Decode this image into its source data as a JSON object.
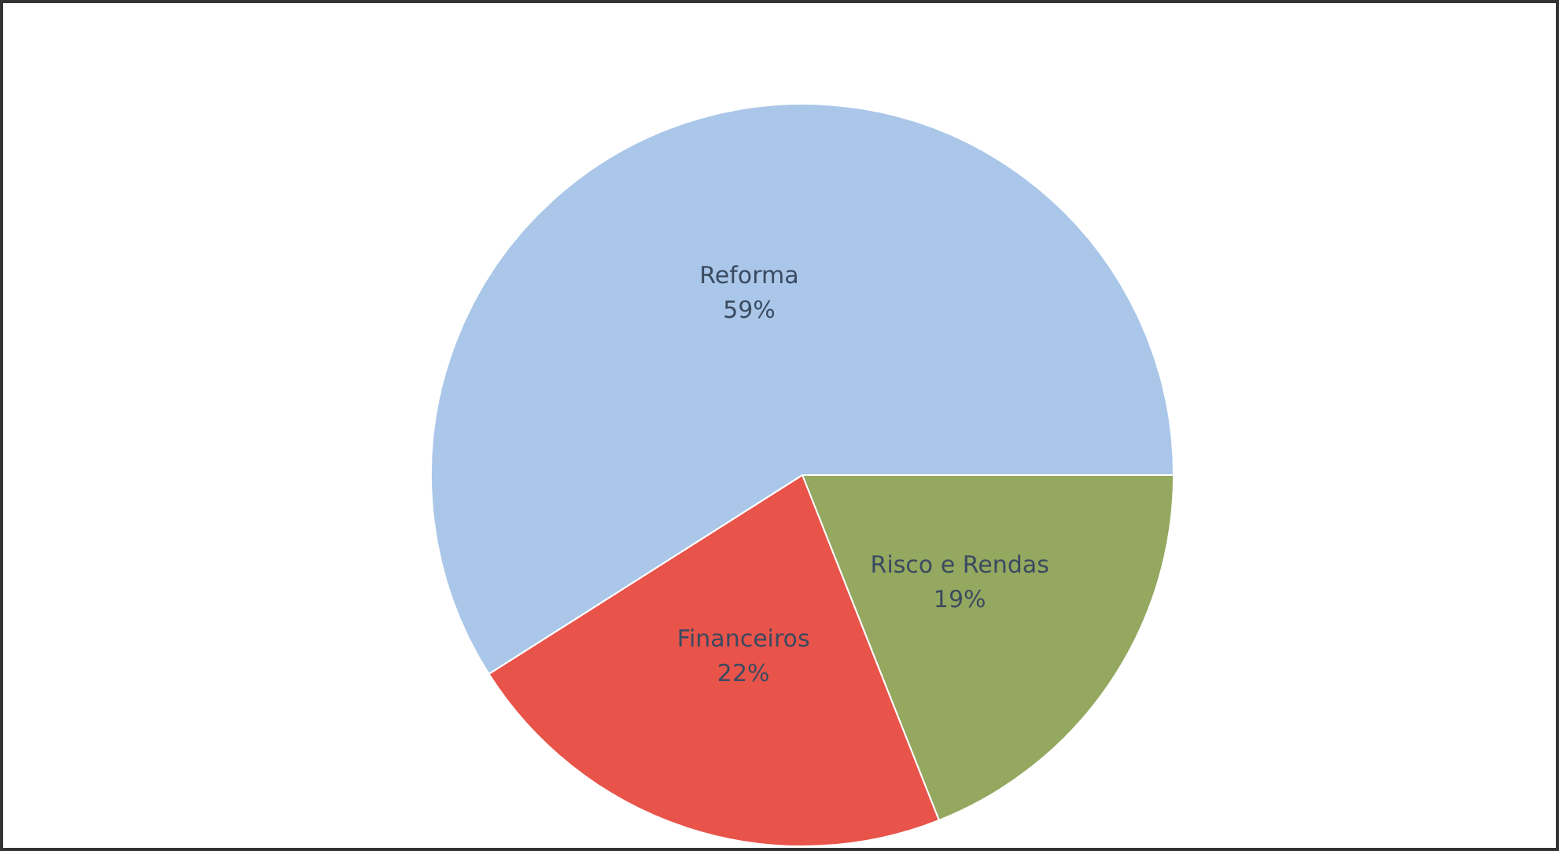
{
  "chart_data": {
    "type": "pie",
    "categories": [
      "Risco e Rendas",
      "Financeiros",
      "Reforma"
    ],
    "values": [
      19,
      22,
      59
    ],
    "colors": [
      "#94a860",
      "#e8534a",
      "#aac7e9"
    ],
    "value_labels": [
      "19%",
      "22%",
      "59%"
    ],
    "legend": false
  }
}
